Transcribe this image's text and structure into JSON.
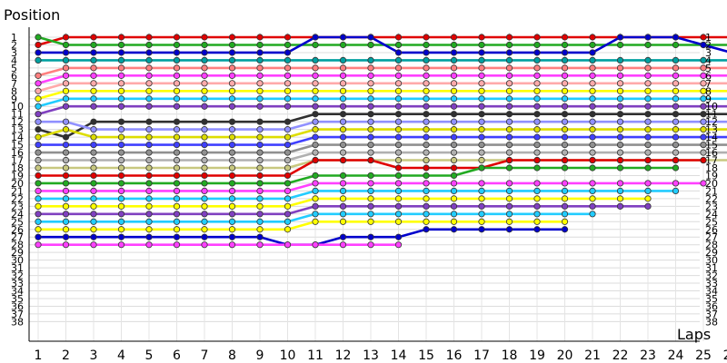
{
  "chart_data": {
    "type": "line",
    "xlabel": "Laps",
    "ylabel": "Position",
    "grid": true,
    "legend": "none",
    "laps": [
      1,
      2,
      3,
      4,
      5,
      6,
      7,
      8,
      9,
      10,
      11,
      12,
      13,
      14,
      15,
      16,
      17,
      18,
      19,
      20,
      21,
      22,
      23,
      24,
      25,
      26
    ],
    "ylim": [
      1,
      38
    ],
    "y_inverted": true,
    "y_ticks": [
      1,
      2,
      3,
      4,
      5,
      6,
      7,
      8,
      9,
      10,
      11,
      12,
      13,
      14,
      15,
      16,
      17,
      18,
      19,
      20,
      21,
      22,
      23,
      24,
      25,
      26,
      27,
      28,
      29,
      30,
      31,
      32,
      33,
      34,
      35,
      36,
      37,
      38
    ],
    "series": [
      {
        "color": "#e00000",
        "values": [
          2,
          1,
          1,
          1,
          1,
          1,
          1,
          1,
          1,
          1,
          1,
          1,
          1,
          1,
          1,
          1,
          1,
          1,
          1,
          1,
          1,
          1,
          1,
          1,
          1,
          1
        ]
      },
      {
        "color": "#22aa22",
        "values": [
          1,
          2,
          2,
          2,
          2,
          2,
          2,
          2,
          2,
          2,
          2,
          2,
          2,
          2,
          2,
          2,
          2,
          2,
          2,
          2,
          2,
          2,
          2,
          2,
          2,
          2
        ]
      },
      {
        "color": "#0000cc",
        "values": [
          3,
          3,
          3,
          3,
          3,
          3,
          3,
          3,
          3,
          3,
          1,
          1,
          1,
          3,
          3,
          3,
          3,
          3,
          3,
          3,
          3,
          1,
          1,
          1,
          2,
          3
        ]
      },
      {
        "color": "#00a0a0",
        "values": [
          4,
          4,
          4,
          4,
          4,
          4,
          4,
          4,
          4,
          4,
          4,
          4,
          4,
          4,
          4,
          4,
          4,
          4,
          4,
          4,
          4,
          4,
          4,
          4,
          4,
          4
        ]
      },
      {
        "color": "#ff8080",
        "values": [
          6,
          5,
          5,
          5,
          5,
          5,
          5,
          5,
          5,
          5,
          5,
          5,
          5,
          5,
          5,
          5,
          5,
          5,
          5,
          5,
          5,
          5,
          5,
          5,
          5,
          5
        ]
      },
      {
        "color": "#ff40ff",
        "values": [
          7,
          6,
          6,
          6,
          6,
          6,
          6,
          6,
          6,
          6,
          6,
          6,
          6,
          6,
          6,
          6,
          6,
          6,
          6,
          6,
          6,
          6,
          6,
          6,
          6,
          6
        ]
      },
      {
        "color": "#ffaaaa",
        "values": [
          8,
          7,
          7,
          7,
          7,
          7,
          7,
          7,
          7,
          7,
          7,
          7,
          7,
          7,
          7,
          7,
          7,
          7,
          7,
          7,
          7,
          7,
          7,
          7,
          7,
          7
        ]
      },
      {
        "color": "#ffff00",
        "values": [
          9,
          8,
          8,
          8,
          8,
          8,
          8,
          8,
          8,
          8,
          8,
          8,
          8,
          8,
          8,
          8,
          8,
          8,
          8,
          8,
          8,
          8,
          8,
          8,
          8,
          8
        ]
      },
      {
        "color": "#22ccff",
        "values": [
          10,
          9,
          9,
          9,
          9,
          9,
          9,
          9,
          9,
          9,
          9,
          9,
          9,
          9,
          9,
          9,
          9,
          9,
          9,
          9,
          9,
          9,
          9,
          9,
          9,
          9
        ]
      },
      {
        "color": "#8040c0",
        "values": [
          11,
          10,
          10,
          10,
          10,
          10,
          10,
          10,
          10,
          10,
          10,
          10,
          10,
          10,
          10,
          10,
          10,
          10,
          10,
          10,
          10,
          10,
          10,
          10,
          10,
          10
        ]
      },
      {
        "color": "#303030",
        "values": [
          13,
          14,
          12,
          12,
          12,
          12,
          12,
          12,
          12,
          12,
          11,
          11,
          11,
          11,
          11,
          11,
          11,
          11,
          11,
          11,
          11,
          11,
          11,
          11,
          11,
          11
        ]
      },
      {
        "color": "#9090ff",
        "values": [
          12,
          12,
          13,
          13,
          13,
          13,
          13,
          13,
          13,
          13,
          12,
          12,
          12,
          12,
          12,
          12,
          12,
          12,
          12,
          12,
          12,
          12,
          12,
          12,
          12,
          12
        ]
      },
      {
        "color": "#dddd00",
        "values": [
          14,
          13,
          14,
          14,
          14,
          14,
          14,
          14,
          14,
          14,
          13,
          13,
          13,
          13,
          13,
          13,
          13,
          13,
          13,
          13,
          13,
          13,
          13,
          13,
          13,
          13
        ]
      },
      {
        "color": "#4040ff",
        "values": [
          15,
          15,
          15,
          15,
          15,
          15,
          15,
          15,
          15,
          15,
          14,
          14,
          14,
          14,
          14,
          14,
          14,
          14,
          14,
          14,
          14,
          14,
          14,
          14,
          14,
          14
        ]
      },
      {
        "color": "#909090",
        "values": [
          16,
          16,
          16,
          16,
          16,
          16,
          16,
          16,
          16,
          16,
          15,
          15,
          15,
          15,
          15,
          15,
          15,
          15,
          15,
          15,
          15,
          15,
          15,
          15,
          15,
          15
        ]
      },
      {
        "color": "#b0b0b0",
        "values": [
          17,
          17,
          17,
          17,
          17,
          17,
          17,
          17,
          17,
          17,
          16,
          16,
          16,
          16,
          16,
          16,
          16,
          16,
          16,
          16,
          16,
          16,
          16,
          16,
          16,
          16
        ]
      },
      {
        "color": "#c8c880",
        "values": [
          18,
          18,
          18,
          18,
          18,
          18,
          18,
          18,
          18,
          18,
          17,
          17,
          17,
          17,
          17,
          17,
          17,
          17,
          17,
          17,
          17,
          17,
          17,
          17,
          17,
          17
        ]
      },
      {
        "color": "#e00000",
        "values": [
          19,
          19,
          19,
          19,
          19,
          19,
          19,
          19,
          19,
          19,
          17,
          17,
          17,
          18,
          18,
          18,
          18,
          17,
          17,
          17,
          17,
          17,
          17,
          17,
          17,
          null
        ]
      },
      {
        "color": "#22aa22",
        "values": [
          20,
          20,
          20,
          20,
          20,
          20,
          20,
          20,
          20,
          20,
          19,
          19,
          19,
          19,
          19,
          19,
          18,
          18,
          18,
          18,
          18,
          18,
          18,
          18,
          null,
          null
        ]
      },
      {
        "color": "#ff40ff",
        "values": [
          21,
          21,
          21,
          21,
          21,
          21,
          21,
          21,
          21,
          21,
          20,
          20,
          20,
          20,
          20,
          20,
          20,
          20,
          20,
          20,
          20,
          20,
          20,
          20,
          20,
          null
        ]
      },
      {
        "color": "#22ccff",
        "values": [
          22,
          22,
          22,
          22,
          22,
          22,
          22,
          22,
          22,
          22,
          21,
          21,
          21,
          21,
          21,
          21,
          21,
          21,
          21,
          21,
          21,
          21,
          21,
          21,
          null,
          null
        ]
      },
      {
        "color": "#ffff00",
        "values": [
          23,
          23,
          23,
          23,
          23,
          23,
          23,
          23,
          23,
          23,
          22,
          22,
          22,
          22,
          22,
          22,
          22,
          22,
          22,
          22,
          22,
          22,
          22,
          null,
          null,
          null
        ]
      },
      {
        "color": "#8040c0",
        "values": [
          24,
          24,
          24,
          24,
          24,
          24,
          24,
          24,
          24,
          24,
          23,
          23,
          23,
          23,
          23,
          23,
          23,
          23,
          23,
          23,
          23,
          23,
          23,
          null,
          null,
          null
        ]
      },
      {
        "color": "#22ccff",
        "values": [
          25,
          25,
          25,
          25,
          25,
          25,
          25,
          25,
          25,
          25,
          24,
          24,
          24,
          24,
          24,
          24,
          24,
          24,
          24,
          24,
          24,
          null,
          null,
          null,
          null,
          null
        ]
      },
      {
        "color": "#ffff00",
        "values": [
          26,
          26,
          26,
          26,
          26,
          26,
          26,
          26,
          26,
          26,
          25,
          25,
          25,
          25,
          25,
          25,
          25,
          25,
          25,
          25,
          null,
          null,
          null,
          null,
          null,
          null
        ]
      },
      {
        "color": "#0000cc",
        "values": [
          27,
          27,
          27,
          27,
          27,
          27,
          27,
          27,
          27,
          28,
          28,
          27,
          27,
          27,
          26,
          26,
          26,
          26,
          26,
          26,
          null,
          null,
          null,
          null,
          null,
          null
        ]
      },
      {
        "color": "#ff40ff",
        "values": [
          28,
          28,
          28,
          28,
          28,
          28,
          28,
          28,
          28,
          28,
          28,
          28,
          28,
          28,
          null,
          null,
          null,
          null,
          null,
          null,
          null,
          null,
          null,
          null,
          null,
          null
        ]
      }
    ]
  }
}
